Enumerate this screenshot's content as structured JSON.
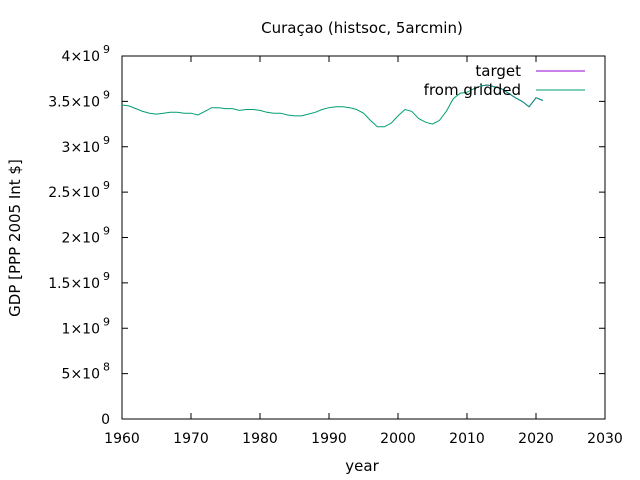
{
  "chart_data": {
    "type": "line",
    "title": "Curaçao (histsoc, 5arcmin)",
    "xlabel": "year",
    "ylabel": "GDP [PPP 2005 Int $]",
    "xlim": [
      1960,
      2030
    ],
    "ylim": [
      0,
      4000000000
    ],
    "xticks": [
      1960,
      1970,
      1980,
      1990,
      2000,
      2010,
      2020,
      2030
    ],
    "xtick_labels": [
      "1960",
      "1970",
      "1980",
      "1990",
      "2000",
      "2010",
      "2020",
      "2030"
    ],
    "yticks": [
      0,
      500000000,
      1000000000,
      1500000000,
      2000000000,
      2500000000,
      3000000000,
      3500000000,
      4000000000
    ],
    "ytick_labels": [
      {
        "mant": "0",
        "exp": ""
      },
      {
        "mant": "5×10",
        "exp": "8"
      },
      {
        "mant": "1×10",
        "exp": "9"
      },
      {
        "mant": "1.5×10",
        "exp": "9"
      },
      {
        "mant": "2×10",
        "exp": "9"
      },
      {
        "mant": "2.5×10",
        "exp": "9"
      },
      {
        "mant": "3×10",
        "exp": "9"
      },
      {
        "mant": "3.5×10",
        "exp": "9"
      },
      {
        "mant": "4×10",
        "exp": "9"
      }
    ],
    "grid": false,
    "legend_position": "top-right",
    "series": [
      {
        "name": "target",
        "color": "#9400d3",
        "x": [
          2012,
          2013,
          2014,
          2015,
          2016,
          2017,
          2018,
          2019,
          2020,
          2021
        ],
        "y": [
          3670000000,
          3680000000,
          3660000000,
          3640000000,
          3590000000,
          3540000000,
          3500000000,
          3440000000,
          3540000000,
          3510000000
        ]
      },
      {
        "name": "from gridded",
        "color": "#009e73",
        "x": [
          1960,
          1961,
          1962,
          1963,
          1964,
          1965,
          1966,
          1967,
          1968,
          1969,
          1970,
          1971,
          1972,
          1973,
          1974,
          1975,
          1976,
          1977,
          1978,
          1979,
          1980,
          1981,
          1982,
          1983,
          1984,
          1985,
          1986,
          1987,
          1988,
          1989,
          1990,
          1991,
          1992,
          1993,
          1994,
          1995,
          1996,
          1997,
          1998,
          1999,
          2000,
          2001,
          2002,
          2003,
          2004,
          2005,
          2006,
          2007,
          2008,
          2009,
          2010,
          2011,
          2012,
          2013,
          2014,
          2015,
          2016,
          2017,
          2018,
          2019,
          2020,
          2021
        ],
        "y": [
          3460000000,
          3450000000,
          3420000000,
          3390000000,
          3370000000,
          3360000000,
          3370000000,
          3380000000,
          3380000000,
          3370000000,
          3370000000,
          3350000000,
          3390000000,
          3430000000,
          3430000000,
          3420000000,
          3420000000,
          3400000000,
          3410000000,
          3410000000,
          3400000000,
          3380000000,
          3370000000,
          3370000000,
          3350000000,
          3340000000,
          3340000000,
          3360000000,
          3380000000,
          3410000000,
          3430000000,
          3440000000,
          3440000000,
          3430000000,
          3410000000,
          3370000000,
          3290000000,
          3220000000,
          3220000000,
          3260000000,
          3340000000,
          3410000000,
          3390000000,
          3310000000,
          3270000000,
          3250000000,
          3290000000,
          3390000000,
          3530000000,
          3590000000,
          3600000000,
          3640000000,
          3670000000,
          3680000000,
          3660000000,
          3640000000,
          3590000000,
          3540000000,
          3500000000,
          3440000000,
          3540000000,
          3510000000
        ]
      }
    ]
  }
}
